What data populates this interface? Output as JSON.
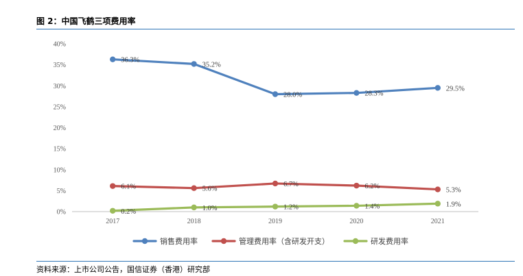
{
  "figure": {
    "title": "图 2：中国飞鹤三项费用率",
    "source": "资料来源：上市公司公告，国信证券（香港）研究部"
  },
  "chart_data": {
    "type": "line",
    "title": "",
    "xlabel": "",
    "ylabel": "",
    "categories": [
      "2017",
      "2018",
      "2019",
      "2020",
      "2021"
    ],
    "y_ticks": [
      "0%",
      "5%",
      "10%",
      "15%",
      "20%",
      "25%",
      "30%",
      "35%",
      "40%"
    ],
    "ylim": [
      0,
      40
    ],
    "grid": false,
    "legend_position": "bottom",
    "series": [
      {
        "name": "销售费用率",
        "color": "#4f81bd",
        "values": [
          36.3,
          35.2,
          28.0,
          28.3,
          29.5
        ],
        "labels": [
          "36.3%",
          "35.2%",
          "28.0%",
          "28.3%",
          "29.5%"
        ]
      },
      {
        "name": "管理费用率（含研发开支）",
        "color": "#c0504d",
        "values": [
          6.1,
          5.6,
          6.7,
          6.2,
          5.3
        ],
        "labels": [
          "6.1%",
          "5.6%",
          "6.7%",
          "6.2%",
          "5.3%"
        ]
      },
      {
        "name": "研发费用率",
        "color": "#9bbb59",
        "values": [
          0.2,
          1.0,
          1.2,
          1.4,
          1.9
        ],
        "labels": [
          "0.2%",
          "1.0%",
          "1.2%",
          "1.4%",
          "1.9%"
        ]
      }
    ]
  }
}
